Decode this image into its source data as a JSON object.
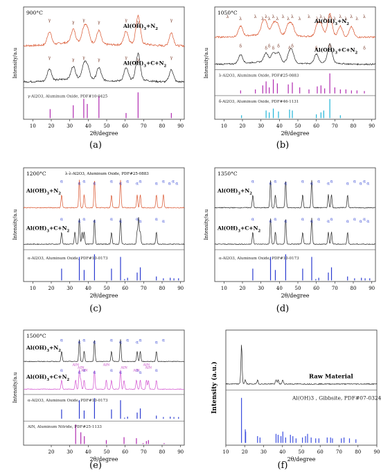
{
  "panels": [
    {
      "id": "a",
      "caption": "(a)",
      "temperature": "900°C",
      "ylabel": "Intensity/a.u",
      "xlabel": "2θ/degree",
      "xticks": [
        10,
        20,
        30,
        40,
        50,
        60,
        70,
        80,
        90
      ],
      "xlim": [
        5,
        92
      ],
      "peak_marker": "γ",
      "series": [
        {
          "label": "Al(OH)3+N2",
          "color": "#d9522b",
          "peaks": [
            19,
            31.9,
            37.6,
            39.5,
            45.8,
            60.5,
            67.0,
            85
          ],
          "marker_positions": [
            19,
            31.9,
            37.6,
            45.8,
            60.5,
            67.0,
            85
          ]
        },
        {
          "label": "Al(OH)3+C+N2",
          "color": "#222222",
          "peaks": [
            19,
            31.9,
            37.6,
            39.5,
            45.8,
            60.5,
            67.0,
            85
          ],
          "marker_positions": [
            19,
            31.9,
            37.6,
            45.8,
            60.5,
            67.0,
            85
          ]
        }
      ],
      "references": [
        {
          "label": "γ-Al2O3, Aluminum Oxide, PDF#10-0425",
          "color": "#b02ab0",
          "x": [
            19.4,
            31.9,
            37.6,
            39.5,
            45.8,
            60.5,
            67.0,
            85.0
          ],
          "y": [
            0.35,
            0.5,
            0.75,
            0.55,
            0.85,
            0.2,
            1.0,
            0.2
          ]
        }
      ]
    },
    {
      "id": "b",
      "caption": "(b)",
      "temperature": "1050°C",
      "ylabel": "Intensity/a.u",
      "xlabel": "2θ/degree",
      "xticks": [
        10,
        20,
        30,
        40,
        50,
        60,
        70,
        80,
        90
      ],
      "xlim": [
        5,
        92
      ],
      "series": [
        {
          "label": "Al(OH)3+N2",
          "color": "#d9522b",
          "peaks": [
            19,
            31,
            32.8,
            36.7,
            38.9,
            44.8,
            47,
            60.5,
            62.5,
            67.3,
            73,
            79
          ],
          "marker_positions": [
            12,
            19,
            27,
            31,
            32.8,
            34.5,
            36.7,
            38.9,
            42,
            44.8,
            47,
            51,
            56,
            60.5,
            62.5,
            64.5,
            67.3,
            70,
            73,
            76,
            79,
            82,
            86
          ],
          "marker": "λ"
        },
        {
          "label": "Al(OH)3+C+N2",
          "color": "#222222",
          "peaks": [
            19,
            32.8,
            36.7,
            39.5,
            45.5,
            47,
            60,
            67.3
          ],
          "marker_positions": [
            19,
            32.8,
            34.5,
            36.7,
            39.5,
            45.5,
            47,
            60,
            67.3,
            86
          ],
          "marker": "δ"
        }
      ],
      "references": [
        {
          "label": "λ-Al2O3, Aluminum Oxide, PDF#25-0883",
          "color": "#b02ab0",
          "x": [
            19,
            27,
            31,
            32.8,
            34.5,
            36.7,
            38.9,
            44.8,
            47,
            51,
            56,
            60.5,
            62.5,
            64.5,
            67.3,
            70,
            73,
            76,
            79,
            82,
            86
          ],
          "y": [
            0.15,
            0.2,
            0.4,
            0.6,
            0.3,
            0.7,
            0.5,
            0.45,
            0.55,
            0.3,
            0.2,
            0.35,
            0.4,
            0.25,
            1.0,
            0.3,
            0.2,
            0.2,
            0.15,
            0.15,
            0.12
          ]
        },
        {
          "label": "δ-Al2O3, Aluminum Oxide, PDF#46-1131",
          "color": "#1fb4d8",
          "x": [
            19.5,
            32.8,
            34.5,
            36.7,
            39.5,
            45.5,
            47,
            60,
            62.5,
            64,
            67.3,
            73
          ],
          "y": [
            0.15,
            0.4,
            0.3,
            0.5,
            0.35,
            0.45,
            0.4,
            0.2,
            0.3,
            0.4,
            1.0,
            0.15
          ]
        }
      ]
    },
    {
      "id": "c",
      "caption": "(c)",
      "temperature": "1200°C",
      "ylabel": "Intensity/a.u",
      "xlabel": "2θ/degree",
      "xticks": [
        10,
        20,
        30,
        40,
        50,
        60,
        70,
        80,
        90
      ],
      "xlim": [
        5,
        92
      ],
      "ref_note": "λ-λ-Al2O3, Aluminum Oxide, PDF#25-0883",
      "series": [
        {
          "label": "Al(OH)3+N2",
          "color": "#d9522b",
          "peaks": [
            25.6,
            35.2,
            37.8,
            43.4,
            52.6,
            57.5,
            66.5,
            68.2,
            76.9,
            80.7
          ],
          "marker_positions": [
            25.6,
            35.2,
            37.8,
            43.4,
            52.6,
            57.5,
            61.3,
            66.5,
            68.2,
            76.9,
            80.7,
            84,
            86,
            88
          ],
          "marker": "α"
        },
        {
          "label": "Al(OH)3+C+N2",
          "color": "#222222",
          "peaks": [
            25.6,
            32.8,
            35.2,
            36.7,
            37.8,
            43.4,
            52.6,
            57.5,
            66.5,
            67.3,
            68.2,
            76.9
          ],
          "marker_positions": [
            25.6,
            35.2,
            37.8,
            43.4,
            52.6,
            57.5,
            66.5,
            68.2,
            76.9,
            80.7
          ],
          "marker": "α"
        }
      ],
      "references": [
        {
          "label": "α-Al2O3, Aluminum Oxide, PDF#10-0173",
          "color": "#2a3ad0",
          "x": [
            25.6,
            35.2,
            37.8,
            43.4,
            52.6,
            57.5,
            59.7,
            61.3,
            66.5,
            68.2,
            76.9,
            80.7,
            84.4,
            86.4,
            88.9
          ],
          "y": [
            0.45,
            0.9,
            0.4,
            1.0,
            0.45,
            0.9,
            0.05,
            0.1,
            0.3,
            0.5,
            0.15,
            0.08,
            0.1,
            0.08,
            0.08
          ]
        }
      ]
    },
    {
      "id": "d",
      "caption": "(d)",
      "temperature": "1350°C",
      "ylabel": "Intensity/a.u",
      "xlabel": "2θ/degree",
      "xticks": [
        10,
        20,
        30,
        40,
        50,
        60,
        70,
        80,
        90
      ],
      "xlim": [
        5,
        92
      ],
      "series": [
        {
          "label": "Al(OH)3+N2",
          "color": "#222222",
          "peaks": [
            25.6,
            35.2,
            37.8,
            43.4,
            52.6,
            57.5,
            66.5,
            68.2,
            76.9
          ],
          "marker_positions": [
            25.6,
            35.2,
            37.8,
            43.4,
            52.6,
            57.5,
            61.3,
            66.5,
            68.2,
            76.9,
            80.7,
            84,
            86,
            88
          ],
          "marker": "α"
        },
        {
          "label": "Al(OH)3+C+N2",
          "color": "#222222",
          "peaks": [
            25.6,
            35.2,
            37.8,
            43.4,
            52.6,
            57.5,
            66.5,
            68.2,
            76.9
          ],
          "marker_positions": [
            25.6,
            35.2,
            37.8,
            43.4,
            52.6,
            57.5,
            61.3,
            66.5,
            68.2,
            76.9,
            80.7,
            84,
            86,
            88
          ],
          "marker": "α"
        }
      ],
      "references": [
        {
          "label": "α-Al2O3, Aluminum Oxide, PDF#10-0173",
          "color": "#2a3ad0",
          "x": [
            25.6,
            35.2,
            37.8,
            43.4,
            52.6,
            57.5,
            59.7,
            61.3,
            66.5,
            68.2,
            76.9,
            80.7,
            84.4,
            86.4,
            88.9
          ],
          "y": [
            0.45,
            0.9,
            0.4,
            1.0,
            0.45,
            0.9,
            0.05,
            0.1,
            0.3,
            0.5,
            0.15,
            0.08,
            0.1,
            0.08,
            0.08
          ]
        }
      ]
    },
    {
      "id": "e",
      "caption": "(e)",
      "temperature": "1500°C",
      "ylabel": "Intensity/a.u",
      "xlabel": "2θ/degree",
      "xticks": [
        20,
        30,
        40,
        50,
        60,
        70,
        80,
        90
      ],
      "xlim": [
        5,
        92
      ],
      "series": [
        {
          "label": "Al(OH)3+N2",
          "color": "#222222",
          "peaks": [
            25.6,
            35.2,
            37.8,
            43.4,
            52.6,
            57.5,
            66.5,
            68.2,
            76.9
          ],
          "marker_positions": [
            25.6,
            35.2,
            37.8,
            43.4,
            52.6,
            57.5,
            61.3,
            66.5,
            68.2,
            76.9,
            80.7
          ],
          "marker": "α"
        },
        {
          "label": "Al(OH)3+C+N2",
          "color": "#d24fcf",
          "peaks": [
            25.6,
            33.2,
            35.2,
            36,
            37.8,
            43.4,
            49.8,
            52.6,
            57.5,
            59.4,
            66.1,
            68.2,
            71.5,
            72.6,
            76.9
          ],
          "marker_positions": [
            25.6,
            35.2,
            37.8,
            43.4,
            52.6,
            57.5,
            66.5,
            68.2,
            76.9
          ],
          "marker": "α",
          "aln_positions": [
            33.2,
            36,
            37.9,
            49.8,
            59.4,
            66.1,
            71.5,
            72.6
          ]
        }
      ],
      "aln_label": "AlN",
      "references": [
        {
          "label": "α-Al2O3, Aluminum Oxide, PDF#10-0173",
          "color": "#2a3ad0",
          "x": [
            25.6,
            35.2,
            37.8,
            43.4,
            52.6,
            57.5,
            59.7,
            61.3,
            66.5,
            68.2,
            76.9,
            80.7,
            84.4,
            86.4,
            88.9
          ],
          "y": [
            0.45,
            0.9,
            0.4,
            1.0,
            0.45,
            0.9,
            0.05,
            0.1,
            0.3,
            0.5,
            0.15,
            0.08,
            0.1,
            0.08,
            0.08
          ]
        },
        {
          "label": "AlN, Aluminum Nitride, PDF#25-1133",
          "color": "#b02ab0",
          "x": [
            33.2,
            36.0,
            37.9,
            49.8,
            59.4,
            66.1,
            69.7,
            71.5,
            72.6,
            81.1
          ],
          "y": [
            1.0,
            0.6,
            0.4,
            0.2,
            0.35,
            0.3,
            0.05,
            0.15,
            0.2,
            0.05
          ]
        }
      ]
    },
    {
      "id": "f",
      "caption": "(f)",
      "ylabel": "Intensity (a.u.)",
      "xlabel": "2θ/degree",
      "xticks": [
        10,
        20,
        30,
        40,
        50,
        60,
        70,
        80,
        90
      ],
      "xlim": [
        10,
        90
      ],
      "series": [
        {
          "label": "Raw Material",
          "color": "#222222",
          "peaks": [
            18.3,
            20.3,
            26.8,
            36.6,
            37.7,
            40.2
          ]
        }
      ],
      "references": [
        {
          "label": "Al(OH)3 , Gibbsite, PDF#07-0324",
          "color": "#3a4de0",
          "x": [
            18.3,
            20.3,
            20.5,
            26.8,
            28.1,
            36.6,
            37.7,
            39.2,
            40.2,
            41.7,
            44.2,
            45.5,
            47.2,
            50.6,
            52.2,
            53.3,
            55.2,
            57.6,
            59.3,
            63.7,
            65.5,
            66.5,
            71.2,
            72.6,
            75.5,
            78.9
          ],
          "y": [
            1.0,
            0.3,
            0.25,
            0.15,
            0.12,
            0.2,
            0.18,
            0.15,
            0.25,
            0.12,
            0.18,
            0.15,
            0.1,
            0.12,
            0.15,
            0.2,
            0.12,
            0.1,
            0.1,
            0.12,
            0.12,
            0.1,
            0.1,
            0.12,
            0.1,
            0.08
          ]
        }
      ]
    }
  ],
  "chart_data": [
    {
      "type": "line",
      "title": "900°C",
      "xlabel": "2θ/degree",
      "ylabel": "Intensity/a.u",
      "xlim": [
        5,
        92
      ],
      "series": [
        {
          "name": "Al(OH)3+N2",
          "peaks": [
            19,
            31.9,
            37.6,
            39.5,
            45.8,
            60.5,
            67.0,
            85
          ]
        },
        {
          "name": "Al(OH)3+C+N2",
          "peaks": [
            19,
            31.9,
            37.6,
            39.5,
            45.8,
            60.5,
            67.0,
            85
          ]
        }
      ],
      "reference": "γ-Al2O3, Aluminum Oxide, PDF#10-0425"
    },
    {
      "type": "line",
      "title": "1050°C",
      "xlabel": "2θ/degree",
      "ylabel": "Intensity/a.u",
      "xlim": [
        5,
        92
      ],
      "series": [
        {
          "name": "Al(OH)3+N2"
        },
        {
          "name": "Al(OH)3+C+N2"
        }
      ],
      "reference": [
        "λ-Al2O3, Aluminum Oxide, PDF#25-0883",
        "δ-Al2O3, Aluminum Oxide, PDF#46-1131"
      ]
    },
    {
      "type": "line",
      "title": "1200°C",
      "xlabel": "2θ/degree",
      "ylabel": "Intensity/a.u",
      "xlim": [
        5,
        92
      ],
      "series": [
        {
          "name": "Al(OH)3+N2"
        },
        {
          "name": "Al(OH)3+C+N2"
        }
      ],
      "reference": "α-Al2O3, Aluminum Oxide, PDF#10-0173"
    },
    {
      "type": "line",
      "title": "1350°C",
      "xlabel": "2θ/degree",
      "ylabel": "Intensity/a.u",
      "xlim": [
        5,
        92
      ],
      "series": [
        {
          "name": "Al(OH)3+N2"
        },
        {
          "name": "Al(OH)3+C+N2"
        }
      ],
      "reference": "α-Al2O3, Aluminum Oxide, PDF#10-0173"
    },
    {
      "type": "line",
      "title": "1500°C",
      "xlabel": "2θ/degree",
      "ylabel": "Intensity/a.u",
      "xlim": [
        5,
        92
      ],
      "series": [
        {
          "name": "Al(OH)3+N2"
        },
        {
          "name": "Al(OH)3+C+N2"
        }
      ],
      "reference": [
        "α-Al2O3, Aluminum Oxide, PDF#10-0173",
        "AlN, Aluminum Nitride, PDF#25-1133"
      ]
    },
    {
      "type": "line",
      "xlabel": "2θ/degree",
      "ylabel": "Intensity (a.u.)",
      "xlim": [
        10,
        90
      ],
      "series": [
        {
          "name": "Raw Material"
        }
      ],
      "reference": "Al(OH)3 , Gibbsite, PDF#07-0324"
    }
  ]
}
